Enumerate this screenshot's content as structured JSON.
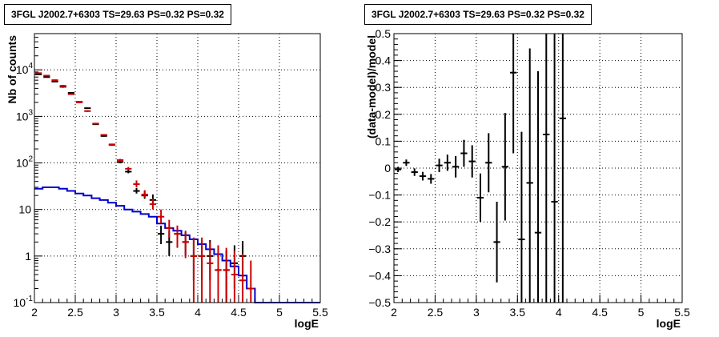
{
  "chart_data": [
    {
      "type": "histogram",
      "title": "3FGL J2002.7+6303 TS=29.63 PS=0.32 PS=0.32",
      "xlabel": "logE",
      "ylabel": "Nb of counts",
      "xlim": [
        2,
        5.5
      ],
      "ylim": [
        0.1,
        60000
      ],
      "yscale": "log",
      "grid": true,
      "x_ticks": [
        "2",
        "2.5",
        "3",
        "3.5",
        "4",
        "4.5",
        "5",
        "5.5"
      ],
      "y_ticks": [
        {
          "value": 0.1,
          "label": "10",
          "sup": "-1"
        },
        {
          "value": 1,
          "label": "1",
          "sup": ""
        },
        {
          "value": 10,
          "label": "10",
          "sup": ""
        },
        {
          "value": 100,
          "label": "10",
          "sup": "2"
        },
        {
          "value": 1000,
          "label": "10",
          "sup": "3"
        },
        {
          "value": 10000,
          "label": "10",
          "sup": "4"
        }
      ],
      "series": [
        {
          "color": "#000000",
          "kind": "points",
          "x": [
            2.05,
            2.15,
            2.25,
            2.35,
            2.45,
            2.55,
            2.65,
            2.75,
            2.85,
            2.95,
            3.05,
            3.15,
            3.25,
            3.35,
            3.45,
            3.55,
            3.65,
            3.75,
            3.85,
            3.95,
            4.05,
            4.15,
            4.25,
            4.35,
            4.45,
            4.55
          ],
          "y": [
            8000,
            7000,
            5600,
            4500,
            3200,
            2050,
            1500,
            680,
            380,
            245,
            105,
            65,
            25,
            20,
            16,
            3,
            2,
            3,
            2,
            1,
            1,
            1,
            0.5,
            0.5,
            0.7,
            1
          ],
          "ylow": [
            7800,
            6800,
            5400,
            4300,
            3100,
            2000,
            1450,
            660,
            365,
            235,
            98,
            60,
            22,
            17,
            13,
            1.8,
            1,
            1.8,
            1,
            0.3,
            0.3,
            0.3,
            0.1,
            0.1,
            0.2,
            0.35
          ],
          "yhigh": [
            8200,
            7200,
            5800,
            4700,
            3300,
            2100,
            1550,
            700,
            395,
            255,
            113,
            71,
            29,
            25,
            21,
            4.5,
            3.4,
            4.5,
            3.3,
            2.2,
            2.2,
            2.2,
            1.3,
            1.3,
            1.7,
            2.1
          ]
        },
        {
          "color": "#cc0000",
          "kind": "points",
          "x": [
            2.05,
            2.15,
            2.25,
            2.35,
            2.45,
            2.55,
            2.65,
            2.75,
            2.85,
            2.95,
            3.05,
            3.15,
            3.25,
            3.35,
            3.45,
            3.55,
            3.65,
            3.75,
            3.85,
            3.95,
            4.05,
            4.15,
            4.25,
            4.35,
            4.45,
            4.55,
            4.65
          ],
          "y": [
            8500,
            7500,
            6000,
            4300,
            3000,
            2000,
            1300,
            700,
            400,
            250,
            115,
            75,
            35,
            21,
            13,
            7,
            4,
            3,
            2,
            1,
            1,
            0.7,
            0.5,
            0.5,
            0.4,
            0.3,
            0.2
          ],
          "ylow": [
            8300,
            7300,
            5800,
            4100,
            2900,
            1950,
            1250,
            680,
            385,
            240,
            108,
            70,
            30,
            18,
            10,
            5,
            2.5,
            1.5,
            0.9,
            0.1,
            0.1,
            0.1,
            0.1,
            0.1,
            0.1,
            0.1,
            0.1
          ],
          "yhigh": [
            8700,
            7700,
            6200,
            4500,
            3100,
            2050,
            1350,
            720,
            415,
            260,
            122,
            82,
            42,
            26,
            17,
            10,
            6,
            4.5,
            3.5,
            2.5,
            2.5,
            2,
            1.7,
            1.5,
            1.3,
            1.1,
            0.8
          ]
        },
        {
          "color": "#0000cc",
          "kind": "step",
          "x_edges": [
            2.0,
            2.1,
            2.2,
            2.3,
            2.4,
            2.5,
            2.6,
            2.7,
            2.8,
            2.9,
            3.0,
            3.1,
            3.2,
            3.3,
            3.4,
            3.5,
            3.6,
            3.7,
            3.8,
            3.9,
            4.0,
            4.1,
            4.2,
            4.3,
            4.4,
            4.5,
            4.6,
            4.7,
            4.8,
            4.9,
            5.0,
            5.1,
            5.2,
            5.3,
            5.4,
            5.5
          ],
          "values": [
            28,
            30,
            30,
            28,
            25,
            22,
            20,
            17.5,
            16,
            14,
            12,
            10,
            9,
            8,
            7,
            5,
            4,
            3.5,
            2.8,
            2.3,
            1.8,
            1.4,
            1.1,
            0.8,
            0.6,
            0.38,
            0.2,
            0.1,
            0.1,
            0.1,
            0.1,
            0.1,
            0.1,
            0.1,
            0.1
          ]
        }
      ]
    },
    {
      "type": "scatter",
      "title": "3FGL J2002.7+6303 TS=29.63 PS=0.32 PS=0.32",
      "xlabel": "logE",
      "ylabel": "(data-model)/model",
      "xlim": [
        2,
        5.5
      ],
      "ylim": [
        -0.5,
        0.5
      ],
      "grid": true,
      "x_ticks": [
        "2",
        "2.5",
        "3",
        "3.5",
        "4",
        "4.5",
        "5",
        "5.5"
      ],
      "y_ticks": [
        "−0.5",
        "−0.4",
        "−0.3",
        "−0.2",
        "−0.1",
        "0",
        "0.1",
        "0.2",
        "0.3",
        "0.4",
        "0.5"
      ],
      "y_tick_values": [
        -0.5,
        -0.4,
        -0.3,
        -0.2,
        -0.1,
        0,
        0.1,
        0.2,
        0.3,
        0.4,
        0.5
      ],
      "series": [
        {
          "color": "#000000",
          "x": [
            2.05,
            2.15,
            2.25,
            2.35,
            2.45,
            2.55,
            2.65,
            2.75,
            2.85,
            2.95,
            3.05,
            3.15,
            3.25,
            3.35,
            3.45,
            3.55,
            3.65,
            3.75,
            3.85,
            3.95,
            4.05
          ],
          "y": [
            -0.005,
            0.02,
            -0.015,
            -0.03,
            -0.04,
            0.01,
            0.02,
            0.005,
            0.055,
            0.025,
            -0.11,
            0.02,
            -0.275,
            0.005,
            0.355,
            -0.265,
            -0.055,
            -0.24,
            0.125,
            -0.125,
            0.185
          ],
          "err": [
            0.01,
            0.012,
            0.014,
            0.016,
            0.018,
            0.025,
            0.03,
            0.04,
            0.05,
            0.06,
            0.09,
            0.11,
            0.15,
            0.2,
            0.3,
            0.4,
            0.5,
            0.6,
            0.8,
            0.8,
            0.9
          ]
        }
      ]
    }
  ]
}
